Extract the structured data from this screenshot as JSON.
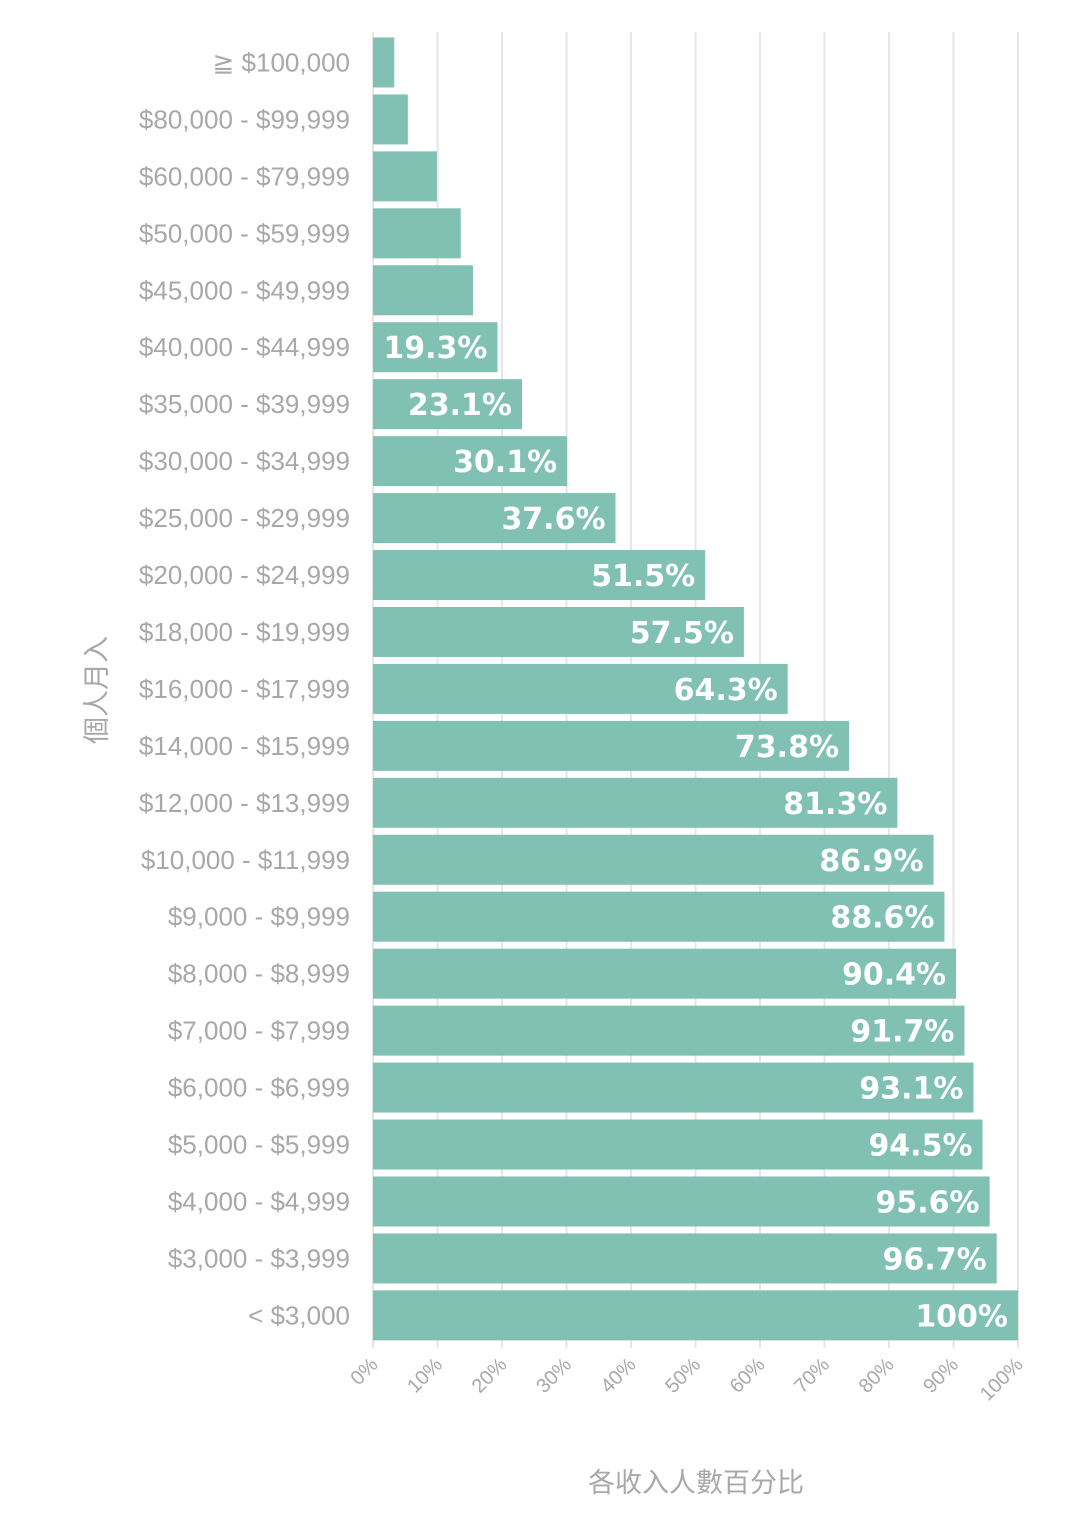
{
  "chart_data": {
    "type": "bar",
    "orientation": "horizontal",
    "categories": [
      "≧ $100,000",
      "$80,000 - $99,999",
      "$60,000 - $79,999",
      "$50,000 - $59,999",
      "$45,000 - $49,999",
      "$40,000 - $44,999",
      "$35,000 - $39,999",
      "$30,000 - $34,999",
      "$25,000 - $29,999",
      "$20,000 - $24,999",
      "$18,000 - $19,999",
      "$16,000 - $17,999",
      "$14,000 - $15,999",
      "$12,000 - $13,999",
      "$10,000 - $11,999",
      "$9,000 - $9,999",
      "$8,000 - $8,999",
      "$7,000 - $7,999",
      "$6,000 - $6,999",
      "$5,000 - $5,999",
      "$4,000 - $4,999",
      "$3,000 - $3,999",
      "< $3,000"
    ],
    "values": [
      3.3,
      5.4,
      9.9,
      13.6,
      15.5,
      19.3,
      23.1,
      30.1,
      37.6,
      51.5,
      57.5,
      64.3,
      73.8,
      81.3,
      86.9,
      88.6,
      90.4,
      91.7,
      93.1,
      94.5,
      95.6,
      96.7,
      100
    ],
    "data_labels": [
      "",
      "",
      "",
      "",
      "",
      "19.3%",
      "23.1%",
      "30.1%",
      "37.6%",
      "51.5%",
      "57.5%",
      "64.3%",
      "73.8%",
      "81.3%",
      "86.9%",
      "88.6%",
      "90.4%",
      "91.7%",
      "93.1%",
      "94.5%",
      "95.6%",
      "96.7%",
      "100%"
    ],
    "xticks": [
      "0%",
      "10%",
      "20%",
      "30%",
      "40%",
      "50%",
      "60%",
      "70%",
      "80%",
      "90%",
      "100%"
    ],
    "xlim": [
      0,
      100
    ],
    "xlabel": "各收入人數百分比",
    "ylabel": "個人月入",
    "grid": "vertical",
    "bar_color": "#80c1b4"
  }
}
